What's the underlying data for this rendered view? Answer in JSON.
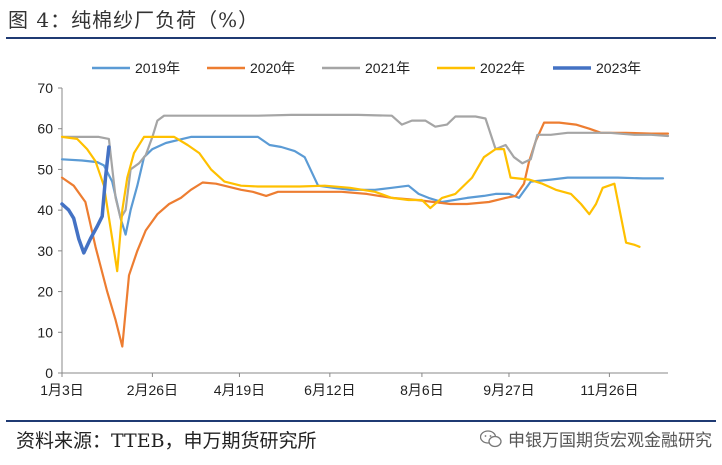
{
  "header": {
    "title": "图 4：纯棉纱厂负荷（%）"
  },
  "footer": {
    "source": "资料来源：TTEB，申万期货研究所",
    "watermark": "申银万国期货宏观金融研究"
  },
  "colors": {
    "2019年": "#5b9bd5",
    "2020年": "#ed7d31",
    "2021年": "#a5a5a5",
    "2022年": "#ffc000",
    "2023年": "#4472c4",
    "rule": "#1f3a73"
  },
  "chart_data": {
    "type": "line",
    "title": "",
    "xlabel": "",
    "ylabel": "",
    "x_ticks": [
      "1月3日",
      "2月26日",
      "4月19日",
      "6月12日",
      "8月6日",
      "9月27日",
      "11月26日"
    ],
    "x_tick_days": [
      3,
      57,
      109,
      163,
      218,
      270,
      330
    ],
    "x_range_days": [
      3,
      365
    ],
    "ylim": [
      0,
      70
    ],
    "yticks": [
      0,
      10,
      20,
      30,
      40,
      50,
      60,
      70
    ],
    "legend_position": "top",
    "series": [
      {
        "name": "2019年",
        "color": "#5b9bd5",
        "points": [
          [
            3,
            52.5
          ],
          [
            15,
            52.2
          ],
          [
            24,
            51.8
          ],
          [
            28,
            51
          ],
          [
            33,
            47
          ],
          [
            38,
            38
          ],
          [
            41,
            34
          ],
          [
            44,
            40
          ],
          [
            48,
            46
          ],
          [
            52,
            53
          ],
          [
            57,
            55
          ],
          [
            65,
            56.5
          ],
          [
            75,
            57.5
          ],
          [
            80,
            58
          ],
          [
            95,
            58
          ],
          [
            110,
            58
          ],
          [
            120,
            58
          ],
          [
            127,
            56
          ],
          [
            134,
            55.5
          ],
          [
            142,
            54.5
          ],
          [
            148,
            53
          ],
          [
            156,
            46
          ],
          [
            165,
            45.5
          ],
          [
            175,
            45
          ],
          [
            190,
            45
          ],
          [
            200,
            45.5
          ],
          [
            210,
            46
          ],
          [
            216,
            44
          ],
          [
            222,
            43
          ],
          [
            230,
            42
          ],
          [
            245,
            43
          ],
          [
            255,
            43.5
          ],
          [
            262,
            44
          ],
          [
            270,
            44
          ],
          [
            276,
            43
          ],
          [
            283,
            47
          ],
          [
            295,
            47.5
          ],
          [
            305,
            48
          ],
          [
            320,
            48
          ],
          [
            335,
            48
          ],
          [
            350,
            47.8
          ],
          [
            362,
            47.8
          ]
        ]
      },
      {
        "name": "2020年",
        "color": "#ed7d31",
        "points": [
          [
            3,
            48
          ],
          [
            10,
            46
          ],
          [
            17,
            42
          ],
          [
            23,
            31
          ],
          [
            30,
            20
          ],
          [
            35,
            13
          ],
          [
            39,
            6.5
          ],
          [
            43,
            24
          ],
          [
            48,
            30
          ],
          [
            53,
            35
          ],
          [
            60,
            39
          ],
          [
            67,
            41.5
          ],
          [
            74,
            43
          ],
          [
            80,
            45
          ],
          [
            87,
            46.8
          ],
          [
            95,
            46.5
          ],
          [
            110,
            45
          ],
          [
            117,
            44.5
          ],
          [
            125,
            43.5
          ],
          [
            132,
            44.5
          ],
          [
            140,
            44.5
          ],
          [
            155,
            44.5
          ],
          [
            170,
            44.5
          ],
          [
            185,
            44
          ],
          [
            200,
            43
          ],
          [
            215,
            42.5
          ],
          [
            225,
            42
          ],
          [
            235,
            41.5
          ],
          [
            245,
            41.5
          ],
          [
            258,
            42
          ],
          [
            268,
            43
          ],
          [
            274,
            43.5
          ],
          [
            279,
            46.5
          ],
          [
            282,
            52
          ],
          [
            286,
            57
          ],
          [
            291,
            61.5
          ],
          [
            300,
            61.5
          ],
          [
            310,
            61
          ],
          [
            318,
            60
          ],
          [
            325,
            59
          ],
          [
            340,
            59
          ],
          [
            355,
            58.8
          ],
          [
            365,
            58.8
          ]
        ]
      },
      {
        "name": "2021年",
        "color": "#a5a5a5",
        "points": [
          [
            3,
            58
          ],
          [
            15,
            58
          ],
          [
            25,
            58
          ],
          [
            31,
            57.5
          ],
          [
            35,
            43
          ],
          [
            38,
            38
          ],
          [
            41,
            40
          ],
          [
            44,
            50
          ],
          [
            49,
            51.5
          ],
          [
            53,
            53.5
          ],
          [
            57,
            58
          ],
          [
            60,
            62
          ],
          [
            64,
            63.2
          ],
          [
            80,
            63.2
          ],
          [
            100,
            63.2
          ],
          [
            120,
            63.2
          ],
          [
            140,
            63.4
          ],
          [
            160,
            63.4
          ],
          [
            180,
            63.4
          ],
          [
            200,
            63.2
          ],
          [
            206,
            61
          ],
          [
            212,
            62
          ],
          [
            220,
            62
          ],
          [
            226,
            60.5
          ],
          [
            233,
            61
          ],
          [
            238,
            63
          ],
          [
            250,
            63
          ],
          [
            256,
            62.5
          ],
          [
            262,
            55
          ],
          [
            268,
            56
          ],
          [
            273,
            53
          ],
          [
            278,
            51.5
          ],
          [
            283,
            52.5
          ],
          [
            287,
            58.5
          ],
          [
            295,
            58.5
          ],
          [
            305,
            59
          ],
          [
            315,
            59
          ],
          [
            330,
            59
          ],
          [
            345,
            58.5
          ],
          [
            355,
            58.5
          ],
          [
            365,
            58.2
          ]
        ]
      },
      {
        "name": "2022年",
        "color": "#ffc000",
        "points": [
          [
            3,
            58
          ],
          [
            12,
            57.5
          ],
          [
            18,
            55
          ],
          [
            23,
            52
          ],
          [
            28,
            46
          ],
          [
            33,
            33
          ],
          [
            36,
            25
          ],
          [
            39,
            40
          ],
          [
            42,
            48
          ],
          [
            46,
            54
          ],
          [
            52,
            58
          ],
          [
            60,
            58
          ],
          [
            70,
            58
          ],
          [
            78,
            56
          ],
          [
            85,
            54
          ],
          [
            92,
            50
          ],
          [
            100,
            47
          ],
          [
            110,
            46
          ],
          [
            120,
            45.8
          ],
          [
            130,
            45.8
          ],
          [
            145,
            45.8
          ],
          [
            160,
            46
          ],
          [
            175,
            45.5
          ],
          [
            190,
            44.5
          ],
          [
            200,
            43
          ],
          [
            210,
            42.5
          ],
          [
            218,
            42.5
          ],
          [
            223,
            40.5
          ],
          [
            230,
            43
          ],
          [
            238,
            44
          ],
          [
            248,
            48
          ],
          [
            255,
            53
          ],
          [
            262,
            55
          ],
          [
            267,
            55
          ],
          [
            271,
            48
          ],
          [
            282,
            47.5
          ],
          [
            290,
            46.5
          ],
          [
            298,
            45
          ],
          [
            307,
            44
          ],
          [
            313,
            41.5
          ],
          [
            318,
            39
          ],
          [
            322,
            41.5
          ],
          [
            326,
            45.5
          ],
          [
            333,
            46.5
          ],
          [
            340,
            32
          ],
          [
            345,
            31.5
          ],
          [
            348,
            31
          ]
        ]
      },
      {
        "name": "2023年",
        "color": "#4472c4",
        "points": [
          [
            3,
            41.5
          ],
          [
            7,
            40
          ],
          [
            10,
            38
          ],
          [
            13,
            33
          ],
          [
            16,
            29.5
          ],
          [
            20,
            33
          ],
          [
            24,
            36
          ],
          [
            27,
            38.5
          ],
          [
            29,
            48
          ],
          [
            31,
            55.5
          ]
        ]
      }
    ]
  }
}
